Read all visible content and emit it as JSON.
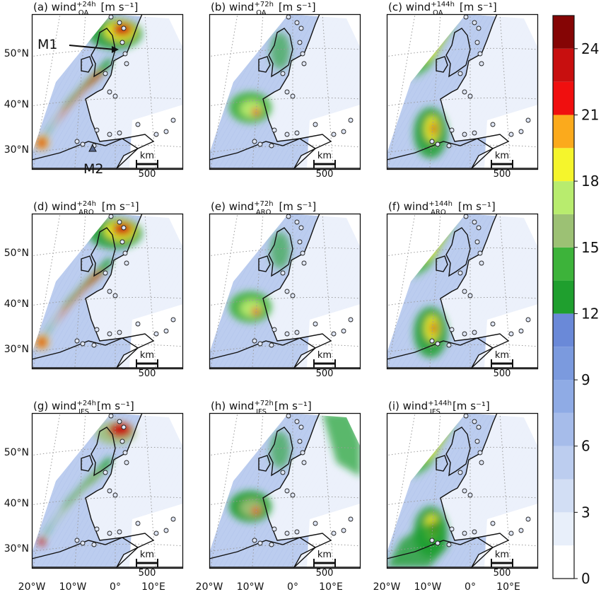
{
  "figure": {
    "panels": [
      {
        "id": "a",
        "prefix": "(a) wind",
        "sup": "+24h",
        "sub": "OA",
        "unit": " [m s⁻¹]",
        "lead": 24,
        "model": "OA"
      },
      {
        "id": "b",
        "prefix": "(b) wind",
        "sup": "+72h",
        "sub": "OA",
        "unit": " [m s⁻¹]",
        "lead": 72,
        "model": "OA"
      },
      {
        "id": "c",
        "prefix": "(c) wind",
        "sup": "+144h",
        "sub": "OA",
        "unit": " [m s⁻¹]",
        "lead": 144,
        "model": "OA"
      },
      {
        "id": "d",
        "prefix": "(d) wind",
        "sup": "+24h",
        "sub": "ARO",
        "unit": " [m s⁻¹]",
        "lead": 24,
        "model": "ARO"
      },
      {
        "id": "e",
        "prefix": "(e) wind",
        "sup": "+72h",
        "sub": "ARO",
        "unit": " [m s⁻¹]",
        "lead": 72,
        "model": "ARO"
      },
      {
        "id": "f",
        "prefix": "(f) wind",
        "sup": "+144h",
        "sub": "ARO",
        "unit": " [m s⁻¹]",
        "lead": 144,
        "model": "ARO"
      },
      {
        "id": "g",
        "prefix": "(g) wind",
        "sup": "+24h",
        "sub": "IFS",
        "unit": " [m s⁻¹]",
        "lead": 24,
        "model": "IFS"
      },
      {
        "id": "h",
        "prefix": "(h) wind",
        "sup": "+72h",
        "sub": "IFS",
        "unit": " [m s⁻¹]",
        "lead": 72,
        "model": "IFS"
      },
      {
        "id": "i",
        "prefix": "(i) wind",
        "sup": "+144h",
        "sub": "IFS",
        "unit": " [m s⁻¹]",
        "lead": 144,
        "model": "IFS"
      }
    ],
    "lat_labels": [
      "50°N",
      "40°N",
      "30°N"
    ],
    "lon_labels": [
      "20°W",
      "10°W",
      "0°",
      "10°E"
    ],
    "markers": {
      "m1": "M1",
      "m2": "M2"
    },
    "scale_bar": {
      "unit": "km",
      "length": "500"
    },
    "colors": {
      "land_outline": "#111111",
      "grid": "#9a9a9a"
    }
  },
  "chart_data": {
    "type": "heatmap",
    "quantity": "wind",
    "unit": "m s⁻¹",
    "rows": [
      "OA",
      "ARO",
      "IFS"
    ],
    "columns_lead_time_h": [
      24,
      72,
      144
    ],
    "lat_ticks": [
      50,
      40,
      30
    ],
    "lon_ticks": [
      -20,
      -10,
      0,
      10
    ],
    "colorbar": {
      "min": 0,
      "max": 25.5,
      "ticks": [
        0,
        3,
        6,
        9,
        12,
        15,
        18,
        21,
        24
      ],
      "levels": [
        0,
        1.5,
        3,
        4.5,
        6,
        7.5,
        9,
        10.5,
        12,
        13.5,
        15,
        16.5,
        18,
        19.5,
        21,
        22.5,
        24,
        25.5
      ],
      "colors": [
        "#ffffff",
        "#e8effa",
        "#d2def4",
        "#bccdef",
        "#a6bcea",
        "#8fabe5",
        "#7b9ade",
        "#6a89d8",
        "#1f9f2e",
        "#3db33a",
        "#9cc174",
        "#b8ec6e",
        "#f5f52c",
        "#fbaa1c",
        "#f00f0f",
        "#c80f0f",
        "#850505",
        "#0a0a0a"
      ]
    }
  }
}
